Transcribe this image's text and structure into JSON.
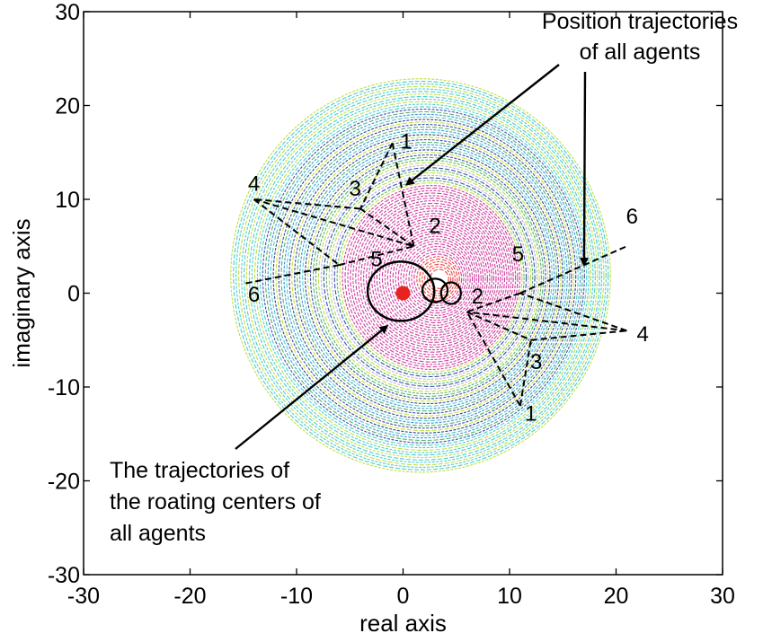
{
  "chart_data": {
    "type": "scatter",
    "title": "",
    "xlabel": "real axis",
    "ylabel": "imaginary axis",
    "xlim": [
      -30,
      30
    ],
    "ylim": [
      -30,
      30
    ],
    "x_ticks": [
      "-30",
      "-20",
      "-10",
      "0",
      "10",
      "20",
      "30"
    ],
    "y_ticks": [
      "30",
      "20",
      "10",
      "0",
      "-10",
      "-20",
      "-30"
    ],
    "grid": false,
    "legend": "none",
    "annotations": [
      {
        "text_lines": [
          "Position trajectories",
          "of all agents"
        ],
        "arrow_targets": [
          [
            0.0,
            11.0
          ],
          [
            17.0,
            3.0
          ]
        ]
      },
      {
        "text_lines": [
          "The trajectories of",
          "the roating centers of",
          "all agents"
        ],
        "arrow_target": [
          -1.5,
          -3.5
        ]
      }
    ],
    "formation_outer": {
      "labels": [
        "1",
        "2",
        "3",
        "4",
        "5",
        "6"
      ],
      "label_points": [
        [
          0.3,
          16.0
        ],
        [
          3.0,
          7.0
        ],
        [
          -4.5,
          11.0
        ],
        [
          -14.0,
          11.5
        ],
        [
          -2.5,
          3.5
        ],
        [
          -14.0,
          -0.3
        ]
      ],
      "vertices": [
        [
          -1.0,
          16.0
        ],
        [
          1.0,
          5.0
        ],
        [
          -4.0,
          9.0
        ],
        [
          -14.0,
          10.0
        ],
        [
          -6.0,
          3.0
        ],
        [
          -15.0,
          1.0
        ]
      ]
    },
    "formation_inner": {
      "labels": [
        "1",
        "2",
        "3",
        "4",
        "5",
        "6"
      ],
      "label_points": [
        [
          12.0,
          -13.0
        ],
        [
          7.0,
          -0.5
        ],
        [
          12.5,
          -7.5
        ],
        [
          22.5,
          -4.5
        ],
        [
          10.8,
          4.0
        ],
        [
          21.5,
          8.0
        ]
      ],
      "vertices": [
        [
          11.0,
          -12.0
        ],
        [
          6.0,
          -2.0
        ],
        [
          12.0,
          -5.0
        ],
        [
          21.0,
          -4.0
        ],
        [
          11.0,
          0.0
        ],
        [
          21.0,
          5.0
        ]
      ]
    },
    "swirl_colors": [
      "#2fc4c4",
      "#b7d91a",
      "#1a2f9a",
      "#35a850",
      "#1f7fd1",
      "#0e1f7a",
      "#a9a4e6",
      "#c51f8f"
    ],
    "center_color": "#e8231f",
    "center_trajectory_color": "#000000",
    "formation_color": "#000000"
  }
}
